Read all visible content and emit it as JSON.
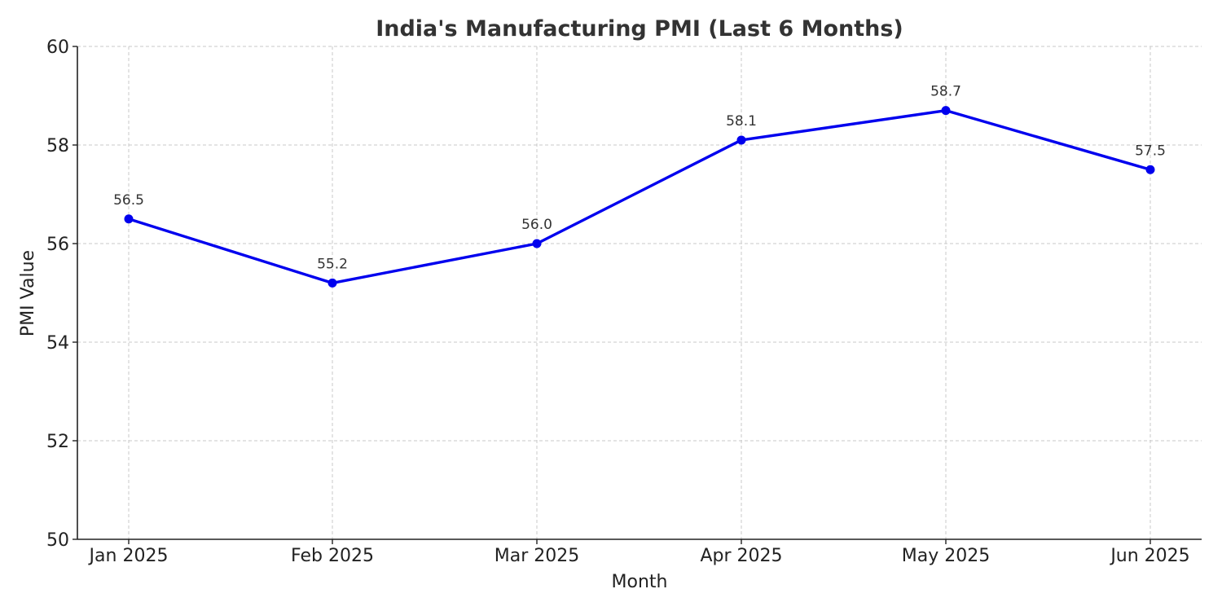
{
  "chart_data": {
    "type": "line",
    "title": "India's Manufacturing PMI (Last 6 Months)",
    "xlabel": "Month",
    "ylabel": "PMI Value",
    "categories": [
      "Jan 2025",
      "Feb 2025",
      "Mar 2025",
      "Apr 2025",
      "May 2025",
      "Jun 2025"
    ],
    "series": [
      {
        "values": [
          56.5,
          55.2,
          56.0,
          58.1,
          58.7,
          57.5
        ],
        "labels": [
          "56.5",
          "55.2",
          "56.0",
          "58.1",
          "58.7",
          "57.5"
        ],
        "color": "#0000ee",
        "marker": "circle"
      }
    ],
    "ylim": [
      50,
      60
    ],
    "yticks": [
      50,
      52,
      54,
      56,
      58,
      60
    ],
    "grid": true,
    "legend": "none"
  }
}
